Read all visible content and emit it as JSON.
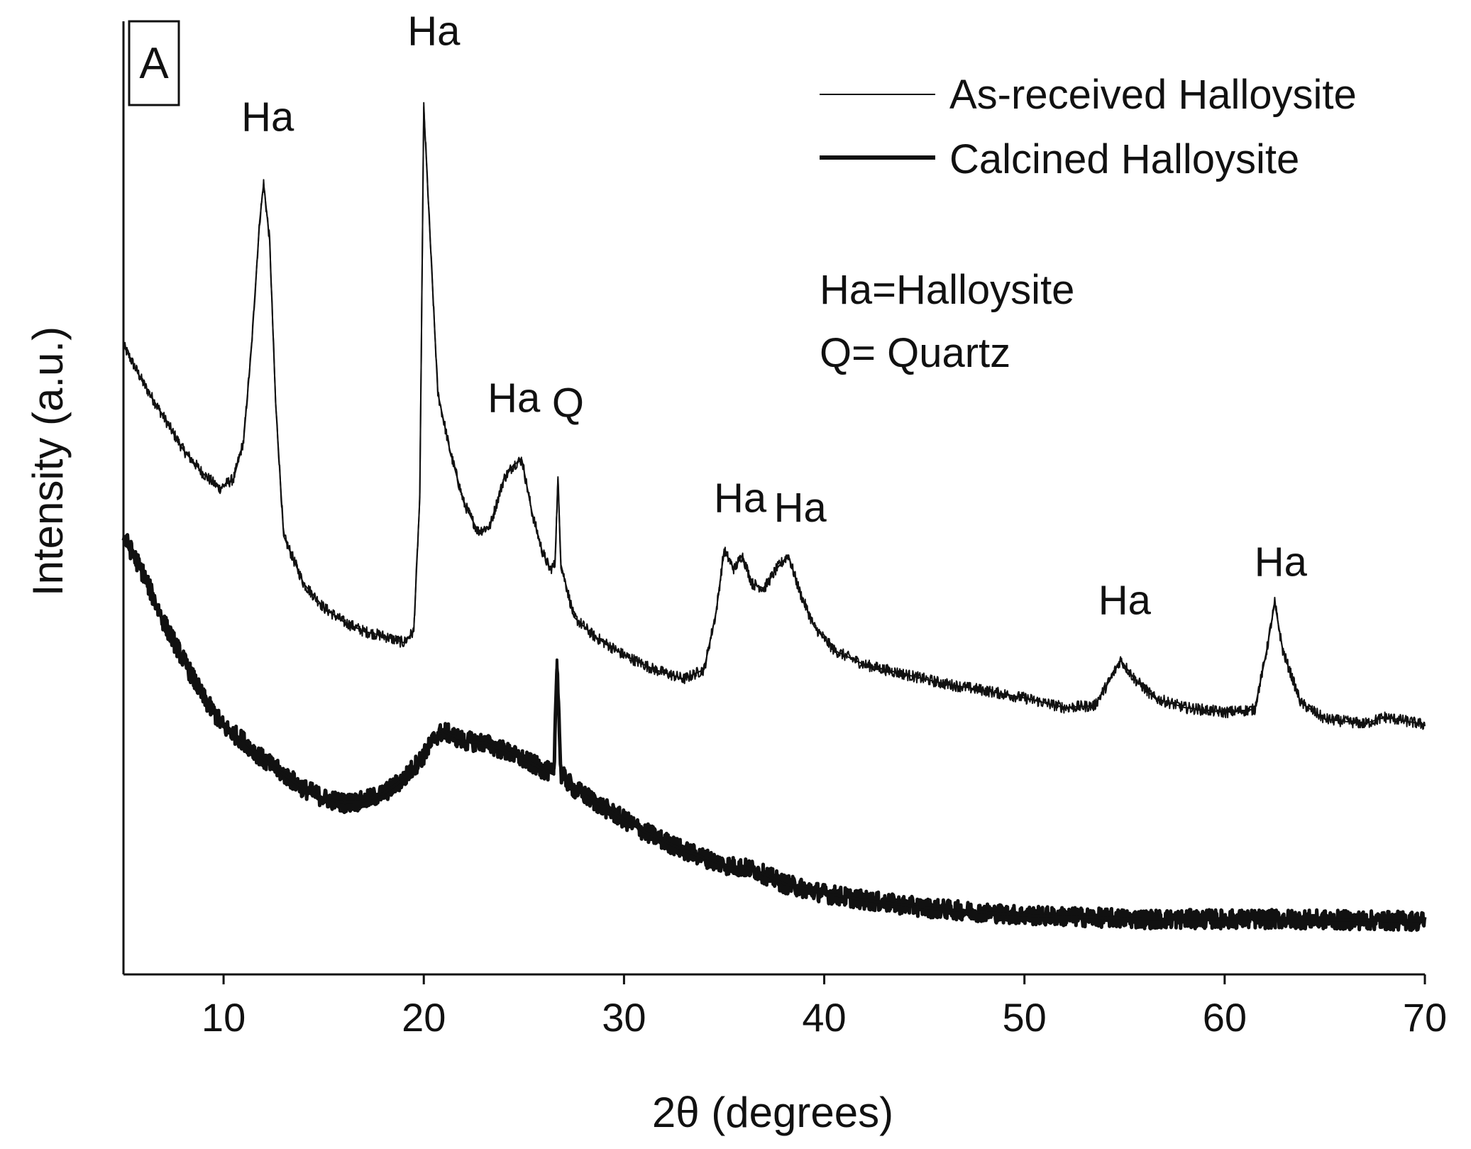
{
  "panel_label": "A",
  "chart_data": {
    "type": "line",
    "xlabel": "2θ (degrees)",
    "ylabel": "Intensity (a.u.)",
    "xlim": [
      5,
      70
    ],
    "ylim": [
      0,
      1
    ],
    "x_ticks": [
      10,
      20,
      30,
      40,
      50,
      60,
      70
    ],
    "x_tick_labels": [
      "10",
      "20",
      "30",
      "40",
      "50",
      "60",
      "70"
    ],
    "y_ticks_shown": false,
    "grid": false,
    "legend_position": "top-right",
    "series": [
      {
        "name": "As-received Halloysite",
        "style": "thin",
        "points": [
          [
            5,
            0.66
          ],
          [
            6,
            0.62
          ],
          [
            7,
            0.585
          ],
          [
            8,
            0.55
          ],
          [
            9,
            0.525
          ],
          [
            9.8,
            0.51
          ],
          [
            10.5,
            0.52
          ],
          [
            11.0,
            0.56
          ],
          [
            11.4,
            0.66
          ],
          [
            11.8,
            0.79
          ],
          [
            12.0,
            0.83
          ],
          [
            12.3,
            0.77
          ],
          [
            12.6,
            0.6
          ],
          [
            13.0,
            0.46
          ],
          [
            14,
            0.41
          ],
          [
            15,
            0.385
          ],
          [
            16,
            0.37
          ],
          [
            17,
            0.36
          ],
          [
            18,
            0.355
          ],
          [
            19,
            0.348
          ],
          [
            19.5,
            0.36
          ],
          [
            19.8,
            0.5
          ],
          [
            20.0,
            0.91
          ],
          [
            20.3,
            0.78
          ],
          [
            20.7,
            0.61
          ],
          [
            21.3,
            0.55
          ],
          [
            22,
            0.495
          ],
          [
            22.7,
            0.465
          ],
          [
            23.3,
            0.47
          ],
          [
            24,
            0.52
          ],
          [
            24.5,
            0.535
          ],
          [
            24.9,
            0.54
          ],
          [
            25.4,
            0.485
          ],
          [
            25.9,
            0.445
          ],
          [
            26.3,
            0.425
          ],
          [
            26.55,
            0.43
          ],
          [
            26.7,
            0.52
          ],
          [
            26.85,
            0.43
          ],
          [
            27.5,
            0.375
          ],
          [
            28.5,
            0.355
          ],
          [
            30,
            0.335
          ],
          [
            31.5,
            0.32
          ],
          [
            33,
            0.31
          ],
          [
            34,
            0.32
          ],
          [
            34.6,
            0.38
          ],
          [
            35.0,
            0.445
          ],
          [
            35.5,
            0.425
          ],
          [
            35.9,
            0.44
          ],
          [
            36.4,
            0.41
          ],
          [
            37,
            0.405
          ],
          [
            37.6,
            0.425
          ],
          [
            38.2,
            0.44
          ],
          [
            38.8,
            0.4
          ],
          [
            39.5,
            0.365
          ],
          [
            40.5,
            0.34
          ],
          [
            42,
            0.325
          ],
          [
            44,
            0.315
          ],
          [
            46,
            0.305
          ],
          [
            48,
            0.298
          ],
          [
            50,
            0.29
          ],
          [
            52,
            0.28
          ],
          [
            53.5,
            0.282
          ],
          [
            54.3,
            0.31
          ],
          [
            54.8,
            0.33
          ],
          [
            55.5,
            0.31
          ],
          [
            56.5,
            0.29
          ],
          [
            58,
            0.28
          ],
          [
            60,
            0.275
          ],
          [
            61.5,
            0.278
          ],
          [
            62.1,
            0.34
          ],
          [
            62.5,
            0.39
          ],
          [
            62.9,
            0.34
          ],
          [
            63.8,
            0.285
          ],
          [
            65,
            0.268
          ],
          [
            67,
            0.263
          ],
          [
            68,
            0.27
          ],
          [
            70,
            0.262
          ]
        ]
      },
      {
        "name": "Calcined Halloysite",
        "style": "thick",
        "points": [
          [
            5,
            0.46
          ],
          [
            6,
            0.42
          ],
          [
            7,
            0.37
          ],
          [
            8,
            0.33
          ],
          [
            9,
            0.29
          ],
          [
            10,
            0.26
          ],
          [
            11,
            0.245
          ],
          [
            12,
            0.225
          ],
          [
            13,
            0.21
          ],
          [
            14,
            0.195
          ],
          [
            15,
            0.185
          ],
          [
            16,
            0.18
          ],
          [
            17,
            0.182
          ],
          [
            18,
            0.19
          ],
          [
            19,
            0.205
          ],
          [
            20,
            0.23
          ],
          [
            20.6,
            0.25
          ],
          [
            21,
            0.255
          ],
          [
            22,
            0.245
          ],
          [
            23,
            0.243
          ],
          [
            24,
            0.235
          ],
          [
            25,
            0.225
          ],
          [
            26,
            0.215
          ],
          [
            26.5,
            0.21
          ],
          [
            26.65,
            0.33
          ],
          [
            26.85,
            0.21
          ],
          [
            27.5,
            0.195
          ],
          [
            29,
            0.175
          ],
          [
            31,
            0.15
          ],
          [
            33,
            0.13
          ],
          [
            35,
            0.115
          ],
          [
            36.5,
            0.11
          ],
          [
            38,
            0.095
          ],
          [
            40,
            0.085
          ],
          [
            42,
            0.078
          ],
          [
            45,
            0.07
          ],
          [
            48,
            0.065
          ],
          [
            50,
            0.062
          ],
          [
            53,
            0.06
          ],
          [
            56,
            0.058
          ],
          [
            60,
            0.058
          ],
          [
            63,
            0.058
          ],
          [
            66,
            0.057
          ],
          [
            70,
            0.056
          ]
        ]
      }
    ],
    "annotations": [
      {
        "text": "Ha",
        "x": 12.2,
        "y": 0.885
      },
      {
        "text": "Ha",
        "x": 20.5,
        "y": 0.975
      },
      {
        "text": "Ha",
        "x": 24.5,
        "y": 0.59
      },
      {
        "text": "Q",
        "x": 27.2,
        "y": 0.585
      },
      {
        "text": "Ha",
        "x": 35.8,
        "y": 0.485
      },
      {
        "text": "Ha",
        "x": 38.8,
        "y": 0.475
      },
      {
        "text": "Ha",
        "x": 55.0,
        "y": 0.378
      },
      {
        "text": "Ha",
        "x": 62.8,
        "y": 0.418
      }
    ]
  },
  "key_notes": [
    "Ha=Halloysite",
    "Q= Quartz"
  ]
}
